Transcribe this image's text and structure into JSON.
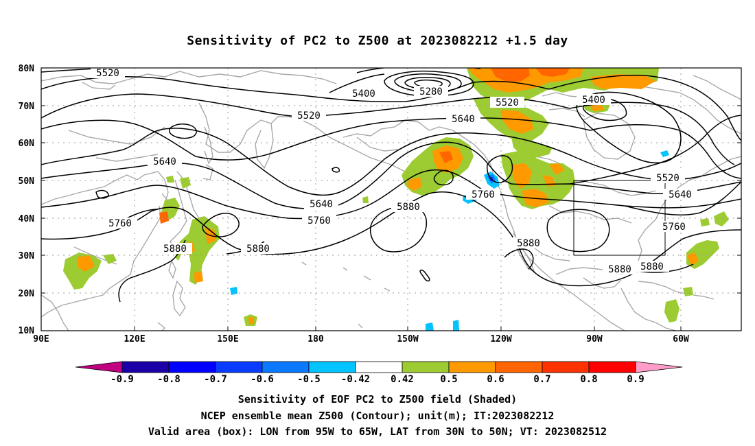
{
  "title": "Sensitivity of PC2 to Z500 at 2023082212 +1.5 day",
  "lat_labels": [
    "80N",
    "70N",
    "60N",
    "50N",
    "40N",
    "30N",
    "20N",
    "10N"
  ],
  "lon_labels": [
    "90E",
    "120E",
    "150E",
    "180",
    "150W",
    "120W",
    "90W",
    "60W"
  ],
  "contour_labels": [
    "5520",
    "5400",
    "5280",
    "5520",
    "5400",
    "5520",
    "5640",
    "5640",
    "5520",
    "5640",
    "5760",
    "5640",
    "5760",
    "5880",
    "5760",
    "5880",
    "5880",
    "5880",
    "5760",
    "5880",
    "5880"
  ],
  "colorbar": {
    "labels": [
      "-0.9",
      "-0.8",
      "-0.7",
      "-0.6",
      "-0.5",
      "-0.42",
      "0.42",
      "0.5",
      "0.6",
      "0.7",
      "0.8",
      "0.9"
    ],
    "colors": [
      "#c00080",
      "#1a00a6",
      "#0000ff",
      "#0a3cff",
      "#0a78ff",
      "#00c3ff",
      "#ffffff",
      "#9ccc32",
      "#ff9900",
      "#ff6600",
      "#ff3300",
      "#ff0000",
      "#ff9dc8"
    ]
  },
  "valid_box": {
    "lon_from": "95W",
    "lon_to": "65W",
    "lat_from": "30N",
    "lat_to": "50N"
  },
  "footnotes": [
    "Sensitivity of EOF PC2 to Z500 field (Shaded)",
    "NCEP ensemble mean Z500 (Contour); unit(m); IT:2023082212",
    "Valid area (box): LON from 95W to 65W, LAT from 30N to 50N; VT: 2023082512"
  ]
}
